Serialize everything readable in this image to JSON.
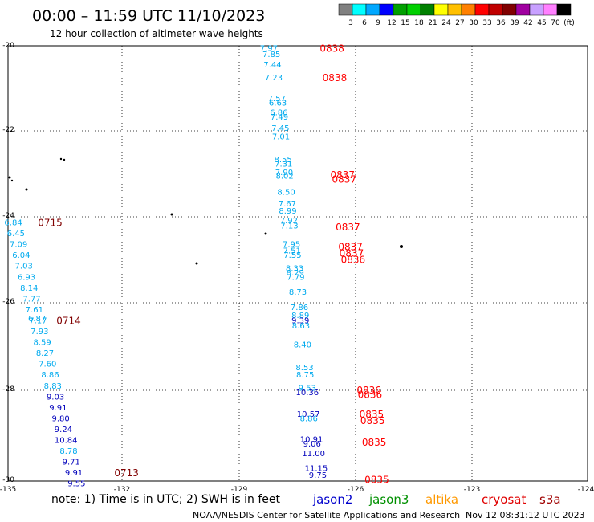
{
  "header": {
    "title": "00:00 – 11:59 UTC 11/10/2023",
    "subtitle": "12 hour collection of altimeter wave heights"
  },
  "legend": {
    "colors": [
      "#808080",
      "#00ffff",
      "#00a8ff",
      "#0000ff",
      "#00a000",
      "#00d000",
      "#008000",
      "#ffff00",
      "#ffc000",
      "#ff8000",
      "#ff0000",
      "#c00000",
      "#800000",
      "#a000a0",
      "#c8a0ff",
      "#ff80ff",
      "#000000"
    ],
    "ticks": [
      "3",
      "6",
      "9",
      "12",
      "15",
      "18",
      "21",
      "24",
      "27",
      "30",
      "33",
      "36",
      "39",
      "42",
      "45",
      "70",
      "(ft)"
    ]
  },
  "footer": {
    "note": "note: 1) Time is in UTC; 2) SWH is in feet",
    "credit": "NOAA/NESDIS Center for Satellite Applications and Research",
    "timestamp": "Nov 12 08:31:12 UTC 2023",
    "satellites": [
      {
        "name": "jason2",
        "color": "#0000cc"
      },
      {
        "name": "jason3",
        "color": "#009000"
      },
      {
        "name": "altika",
        "color": "#ff9900"
      },
      {
        "name": "cryosat",
        "color": "#e00000"
      },
      {
        "name": "s3a",
        "color": "#a00000"
      }
    ]
  },
  "chart_data": {
    "type": "scatter",
    "title": "00:00 – 11:59 UTC 11/10/2023",
    "subtitle": "12 hour collection of altimeter wave heights",
    "xlabel": "",
    "ylabel": "",
    "xlim": [
      -135,
      -124
    ],
    "ylim": [
      -30,
      -20
    ],
    "grid": true,
    "x_ticks": [
      "-135",
      "-132",
      "-129",
      "-126",
      "-123",
      "-124"
    ],
    "y_ticks": [
      "-20",
      "-22",
      "-24",
      "-26",
      "-28",
      "-30"
    ],
    "observations": [
      {
        "x": -130.05,
        "y": -20.05,
        "v": "7.97",
        "c": "#00aaee"
      },
      {
        "x": -130.0,
        "y": -20.18,
        "v": "7.85",
        "c": "#00aaee"
      },
      {
        "x": -129.98,
        "y": -20.42,
        "v": "7.44",
        "c": "#00aaee"
      },
      {
        "x": -129.96,
        "y": -20.72,
        "v": "7.23",
        "c": "#00aaee"
      },
      {
        "x": -129.9,
        "y": -21.2,
        "v": "7.57",
        "c": "#00aaee"
      },
      {
        "x": -129.88,
        "y": -21.3,
        "v": "6.63",
        "c": "#00aaee"
      },
      {
        "x": -129.86,
        "y": -21.52,
        "v": "6.86",
        "c": "#00aaee"
      },
      {
        "x": -129.85,
        "y": -21.62,
        "v": "7.49",
        "c": "#00aaee"
      },
      {
        "x": -129.83,
        "y": -21.88,
        "v": "7.45",
        "c": "#00aaee"
      },
      {
        "x": -129.82,
        "y": -22.08,
        "v": "7.01",
        "c": "#00aaee"
      },
      {
        "x": -129.78,
        "y": -22.6,
        "v": "8.55",
        "c": "#00aaee"
      },
      {
        "x": -129.77,
        "y": -22.7,
        "v": "7.31",
        "c": "#00aaee"
      },
      {
        "x": -129.76,
        "y": -22.9,
        "v": "7.90",
        "c": "#00aaee"
      },
      {
        "x": -129.75,
        "y": -22.98,
        "v": "8.02",
        "c": "#00aaee"
      },
      {
        "x": -129.72,
        "y": -23.35,
        "v": "8.50",
        "c": "#00aaee"
      },
      {
        "x": -129.7,
        "y": -23.62,
        "v": "7.67",
        "c": "#00aaee"
      },
      {
        "x": -129.69,
        "y": -23.78,
        "v": "8.99",
        "c": "#00aaee"
      },
      {
        "x": -129.67,
        "y": -24.0,
        "v": "7.92",
        "c": "#00aaee"
      },
      {
        "x": -129.66,
        "y": -24.12,
        "v": "7.13",
        "c": "#00aaee"
      },
      {
        "x": -129.62,
        "y": -24.55,
        "v": "7.95",
        "c": "#00aaee"
      },
      {
        "x": -129.61,
        "y": -24.7,
        "v": "7.51",
        "c": "#00aaee"
      },
      {
        "x": -129.6,
        "y": -24.8,
        "v": "7.55",
        "c": "#00aaee"
      },
      {
        "x": -129.56,
        "y": -25.1,
        "v": "8.33",
        "c": "#00aaee"
      },
      {
        "x": -129.55,
        "y": -25.2,
        "v": "8.29",
        "c": "#00aaee"
      },
      {
        "x": -129.54,
        "y": -25.3,
        "v": "7.79",
        "c": "#00aaee"
      },
      {
        "x": -129.5,
        "y": -25.65,
        "v": "8.73",
        "c": "#00aaee"
      },
      {
        "x": -129.47,
        "y": -26.0,
        "v": "7.86",
        "c": "#00aaee"
      },
      {
        "x": -129.45,
        "y": -26.18,
        "v": "8.89",
        "c": "#00aaee"
      },
      {
        "x": -129.45,
        "y": -26.3,
        "v": "9.39",
        "c": "#0000bb"
      },
      {
        "x": -129.44,
        "y": -26.42,
        "v": "8.63",
        "c": "#00aaee"
      },
      {
        "x": -129.41,
        "y": -26.85,
        "v": "8.40",
        "c": "#00aaee"
      },
      {
        "x": -129.37,
        "y": -27.38,
        "v": "8.53",
        "c": "#00aaee"
      },
      {
        "x": -129.36,
        "y": -27.55,
        "v": "8.75",
        "c": "#00aaee"
      },
      {
        "x": -129.32,
        "y": -27.85,
        "v": "9.53",
        "c": "#00aaee"
      },
      {
        "x": -129.32,
        "y": -27.95,
        "v": "10.36",
        "c": "#0000bb"
      },
      {
        "x": -129.3,
        "y": -28.45,
        "v": "10.57",
        "c": "#0000bb"
      },
      {
        "x": -129.29,
        "y": -28.55,
        "v": "8.86",
        "c": "#00aaee"
      },
      {
        "x": -129.24,
        "y": -29.03,
        "v": "10.91",
        "c": "#0000bb"
      },
      {
        "x": -129.23,
        "y": -29.13,
        "v": "9.06",
        "c": "#0000bb"
      },
      {
        "x": -129.2,
        "y": -29.35,
        "v": "11.00",
        "c": "#0000bb"
      },
      {
        "x": -129.15,
        "y": -29.7,
        "v": "11.15",
        "c": "#0000bb"
      },
      {
        "x": -129.12,
        "y": -29.85,
        "v": "9.75",
        "c": "#0000bb"
      },
      {
        "x": -134.9,
        "y": -24.05,
        "v": "6.84",
        "c": "#00aaee"
      },
      {
        "x": -134.85,
        "y": -24.3,
        "v": "6.45",
        "c": "#00aaee"
      },
      {
        "x": -134.8,
        "y": -24.55,
        "v": "7.09",
        "c": "#00aaee"
      },
      {
        "x": -134.75,
        "y": -24.8,
        "v": "6.04",
        "c": "#00aaee"
      },
      {
        "x": -134.7,
        "y": -25.05,
        "v": "7.03",
        "c": "#00aaee"
      },
      {
        "x": -134.65,
        "y": -25.3,
        "v": "6.93",
        "c": "#00aaee"
      },
      {
        "x": -134.6,
        "y": -25.55,
        "v": "8.14",
        "c": "#00aaee"
      },
      {
        "x": -134.55,
        "y": -25.8,
        "v": "7.77",
        "c": "#00aaee"
      },
      {
        "x": -134.5,
        "y": -26.05,
        "v": "7.61",
        "c": "#00aaee"
      },
      {
        "x": -134.45,
        "y": -26.25,
        "v": "6.87",
        "c": "#00aaee"
      },
      {
        "x": -134.43,
        "y": -26.3,
        "v": "7.17",
        "c": "#00aaee"
      },
      {
        "x": -134.4,
        "y": -26.55,
        "v": "7.93",
        "c": "#00aaee"
      },
      {
        "x": -134.35,
        "y": -26.8,
        "v": "8.59",
        "c": "#00aaee"
      },
      {
        "x": -134.3,
        "y": -27.05,
        "v": "8.27",
        "c": "#00aaee"
      },
      {
        "x": -134.25,
        "y": -27.3,
        "v": "7.60",
        "c": "#00aaee"
      },
      {
        "x": -134.2,
        "y": -27.55,
        "v": "8.86",
        "c": "#00aaee"
      },
      {
        "x": -134.15,
        "y": -27.8,
        "v": "8.83",
        "c": "#00aaee"
      },
      {
        "x": -134.1,
        "y": -28.05,
        "v": "9.03",
        "c": "#0000bb"
      },
      {
        "x": -134.05,
        "y": -28.3,
        "v": "9.91",
        "c": "#0000bb"
      },
      {
        "x": -134.0,
        "y": -28.55,
        "v": "9.80",
        "c": "#0000bb"
      },
      {
        "x": -133.95,
        "y": -28.8,
        "v": "9.24",
        "c": "#0000bb"
      },
      {
        "x": -133.9,
        "y": -29.05,
        "v": "10.84",
        "c": "#0000bb"
      },
      {
        "x": -133.85,
        "y": -29.3,
        "v": "8.78",
        "c": "#00aaee"
      },
      {
        "x": -133.8,
        "y": -29.55,
        "v": "9.71",
        "c": "#0000bb"
      },
      {
        "x": -133.75,
        "y": -29.8,
        "v": "9.91",
        "c": "#0000bb"
      },
      {
        "x": -133.7,
        "y": -30.05,
        "v": "9.55",
        "c": "#0000bb"
      }
    ],
    "time_labels": [
      {
        "x": -128.85,
        "y": -20.05,
        "t": "0838",
        "c": "#ff0000"
      },
      {
        "x": -128.8,
        "y": -20.72,
        "t": "0838",
        "c": "#ff0000"
      },
      {
        "x": -128.65,
        "y": -22.95,
        "t": "0837",
        "c": "#ff0000"
      },
      {
        "x": -128.62,
        "y": -23.05,
        "t": "0837",
        "c": "#ff0000"
      },
      {
        "x": -128.55,
        "y": -24.15,
        "t": "0837",
        "c": "#ff0000"
      },
      {
        "x": -128.5,
        "y": -24.6,
        "t": "0837",
        "c": "#ff0000"
      },
      {
        "x": -128.48,
        "y": -24.75,
        "t": "0837",
        "c": "#ff0000"
      },
      {
        "x": -128.45,
        "y": -24.9,
        "t": "0836",
        "c": "#ff0000"
      },
      {
        "x": -128.15,
        "y": -27.9,
        "t": "0836",
        "c": "#ff0000"
      },
      {
        "x": -128.13,
        "y": -28.0,
        "t": "0836",
        "c": "#ff0000"
      },
      {
        "x": -128.1,
        "y": -28.45,
        "t": "0835",
        "c": "#ff0000"
      },
      {
        "x": -128.08,
        "y": -28.6,
        "t": "0835",
        "c": "#ff0000"
      },
      {
        "x": -128.05,
        "y": -29.1,
        "t": "0835",
        "c": "#ff0000"
      },
      {
        "x": -128.0,
        "y": -29.95,
        "t": "0835",
        "c": "#ff0000"
      },
      {
        "x": -134.2,
        "y": -24.05,
        "t": "0715",
        "c": "#800000"
      },
      {
        "x": -133.85,
        "y": -26.3,
        "t": "0714",
        "c": "#800000"
      },
      {
        "x": -132.75,
        "y": -29.8,
        "t": "0713",
        "c": "#800000"
      }
    ]
  }
}
